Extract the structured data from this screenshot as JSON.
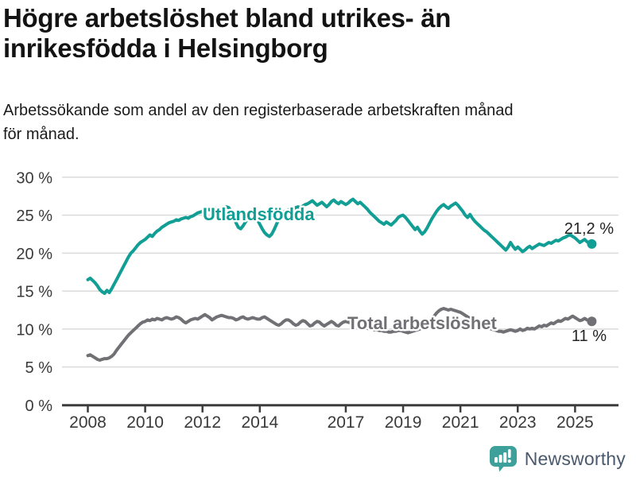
{
  "header": {
    "title_lines": [
      "Högre arbetslöshet bland utrikes- än",
      "inrikesfödda i Helsingborg"
    ],
    "subtitle_lines": [
      "Arbetssökande som andel av den registerbaserade arbetskraften månad",
      "för månad."
    ]
  },
  "chart_data": {
    "type": "line",
    "title": "Högre arbetslöshet bland utrikes- än inrikesfödda i Helsingborg",
    "subtitle": "Arbetssökande som andel av den registerbaserade arbetskraften månad för månad.",
    "x_unit": "month",
    "x_start_year": 2008,
    "x_end": "2025-08",
    "ylim": [
      0,
      30
    ],
    "grid": "horizontal",
    "legend_position": "inline-labels",
    "y_ticks": [
      {
        "value": 0,
        "label": "0 %"
      },
      {
        "value": 5,
        "label": "5 %"
      },
      {
        "value": 10,
        "label": "10 %"
      },
      {
        "value": 15,
        "label": "15 %"
      },
      {
        "value": 20,
        "label": "20 %"
      },
      {
        "value": 25,
        "label": "25 %"
      },
      {
        "value": 30,
        "label": "30 %"
      }
    ],
    "x_ticks": [
      {
        "year": 2008,
        "label": "2008"
      },
      {
        "year": 2010,
        "label": "2010"
      },
      {
        "year": 2012,
        "label": "2012"
      },
      {
        "year": 2014,
        "label": "2014"
      },
      {
        "year": 2017,
        "label": "2017"
      },
      {
        "year": 2019,
        "label": "2019"
      },
      {
        "year": 2021,
        "label": "2021"
      },
      {
        "year": 2023,
        "label": "2023"
      },
      {
        "year": 2025,
        "label": "2025"
      }
    ],
    "series": [
      {
        "name": "Utlandsfödda",
        "color": "#119e94",
        "end_label": "21,2 %",
        "end_value": 21.2,
        "values": [
          16.5,
          16.7,
          16.4,
          16.1,
          15.7,
          15.2,
          14.9,
          14.7,
          15.1,
          14.8,
          15.3,
          15.9,
          16.5,
          17.1,
          17.7,
          18.3,
          18.9,
          19.5,
          20.0,
          20.3,
          20.7,
          21.1,
          21.4,
          21.6,
          21.8,
          22.1,
          22.4,
          22.2,
          22.6,
          22.9,
          23.1,
          23.4,
          23.6,
          23.8,
          24.0,
          24.1,
          24.2,
          24.4,
          24.3,
          24.5,
          24.6,
          24.7,
          24.6,
          24.8,
          24.9,
          25.1,
          25.3,
          25.4,
          25.5,
          25.6,
          25.8,
          25.7,
          25.9,
          26.0,
          25.8,
          25.7,
          25.9,
          26.0,
          26.1,
          26.0,
          25.5,
          24.8,
          24.0,
          23.4,
          23.2,
          23.6,
          24.1,
          24.6,
          25.0,
          25.2,
          24.9,
          24.4,
          23.8,
          23.2,
          22.7,
          22.4,
          22.2,
          22.5,
          23.1,
          23.8,
          24.5,
          25.0,
          25.4,
          25.6,
          25.7,
          25.9,
          25.8,
          26.0,
          26.1,
          26.0,
          26.2,
          26.4,
          26.5,
          26.7,
          26.9,
          26.6,
          26.3,
          26.5,
          26.7,
          26.4,
          26.1,
          26.4,
          26.8,
          27.0,
          26.7,
          26.5,
          26.8,
          26.6,
          26.4,
          26.6,
          26.9,
          27.1,
          26.8,
          26.5,
          26.7,
          26.4,
          26.1,
          25.8,
          25.4,
          25.1,
          24.8,
          24.5,
          24.2,
          24.0,
          23.8,
          24.1,
          23.9,
          23.7,
          24.0,
          24.3,
          24.7,
          24.9,
          25.0,
          24.7,
          24.3,
          23.9,
          23.5,
          23.1,
          23.4,
          22.9,
          22.5,
          22.8,
          23.3,
          23.9,
          24.5,
          25.0,
          25.5,
          25.9,
          26.2,
          26.4,
          26.1,
          25.9,
          26.2,
          26.4,
          26.6,
          26.3,
          25.9,
          25.5,
          25.0,
          24.7,
          25.1,
          24.6,
          24.2,
          23.9,
          23.6,
          23.3,
          23.0,
          22.8,
          22.5,
          22.2,
          21.9,
          21.6,
          21.3,
          21.0,
          20.7,
          20.4,
          20.8,
          21.4,
          20.9,
          20.5,
          20.8,
          20.5,
          20.2,
          20.4,
          20.7,
          20.9,
          20.6,
          20.8,
          21.0,
          21.2,
          21.1,
          21.0,
          21.2,
          21.4,
          21.3,
          21.5,
          21.7,
          21.6,
          21.8,
          22.0,
          22.1,
          22.3,
          22.4,
          22.2,
          22.0,
          21.7,
          21.4,
          21.6,
          21.8,
          21.5,
          21.3,
          21.2
        ]
      },
      {
        "name": "Total arbetslöshet",
        "color": "#707075",
        "end_label": "11 %",
        "end_value": 11.0,
        "values": [
          6.5,
          6.6,
          6.4,
          6.2,
          6.0,
          5.9,
          6.0,
          6.1,
          6.1,
          6.2,
          6.4,
          6.7,
          7.2,
          7.6,
          8.0,
          8.4,
          8.8,
          9.2,
          9.5,
          9.8,
          10.1,
          10.4,
          10.7,
          10.9,
          11.0,
          11.2,
          11.1,
          11.3,
          11.2,
          11.4,
          11.3,
          11.2,
          11.4,
          11.5,
          11.4,
          11.3,
          11.4,
          11.6,
          11.5,
          11.3,
          11.0,
          10.8,
          11.0,
          11.2,
          11.3,
          11.4,
          11.3,
          11.5,
          11.7,
          11.9,
          11.7,
          11.5,
          11.2,
          11.4,
          11.6,
          11.7,
          11.8,
          11.7,
          11.6,
          11.5,
          11.5,
          11.4,
          11.2,
          11.3,
          11.5,
          11.6,
          11.4,
          11.3,
          11.4,
          11.5,
          11.4,
          11.3,
          11.3,
          11.5,
          11.6,
          11.4,
          11.2,
          11.0,
          10.8,
          10.6,
          10.5,
          10.7,
          11.0,
          11.2,
          11.2,
          11.0,
          10.7,
          10.5,
          10.6,
          10.9,
          11.1,
          11.0,
          10.7,
          10.4,
          10.5,
          10.8,
          11.0,
          10.9,
          10.6,
          10.4,
          10.6,
          10.8,
          11.0,
          10.8,
          10.5,
          10.4,
          10.7,
          10.9,
          11.0,
          10.9,
          10.8,
          10.7,
          10.6,
          10.5,
          10.4,
          10.3,
          10.2,
          10.1,
          10.0,
          10.0,
          9.9,
          9.9,
          9.8,
          9.8,
          9.7,
          9.7,
          9.6,
          9.6,
          9.7,
          9.7,
          9.8,
          9.8,
          9.7,
          9.6,
          9.5,
          9.6,
          9.7,
          9.8,
          9.9,
          10.0,
          10.2,
          10.4,
          10.6,
          10.9,
          11.3,
          11.7,
          12.1,
          12.4,
          12.6,
          12.7,
          12.6,
          12.5,
          12.6,
          12.5,
          12.4,
          12.3,
          12.2,
          12.0,
          11.8,
          11.6,
          11.4,
          11.2,
          11.0,
          10.8,
          10.6,
          10.4,
          10.3,
          10.2,
          10.1,
          10.0,
          9.9,
          9.8,
          9.7,
          9.7,
          9.6,
          9.7,
          9.8,
          9.9,
          9.8,
          9.7,
          9.8,
          10.0,
          9.8,
          9.9,
          10.1,
          10.0,
          10.1,
          10.0,
          10.2,
          10.4,
          10.3,
          10.5,
          10.4,
          10.6,
          10.8,
          10.7,
          10.9,
          11.1,
          11.0,
          11.2,
          11.4,
          11.3,
          11.5,
          11.7,
          11.5,
          11.3,
          11.1,
          11.2,
          11.4,
          11.2,
          11.1,
          11.0
        ]
      }
    ]
  },
  "footer": {
    "brand": "Newsworthy",
    "logo_icon": "bar-chart-speech-bubble-icon",
    "logo_color": "#3ea09b",
    "text_color": "#4a5a6c"
  }
}
